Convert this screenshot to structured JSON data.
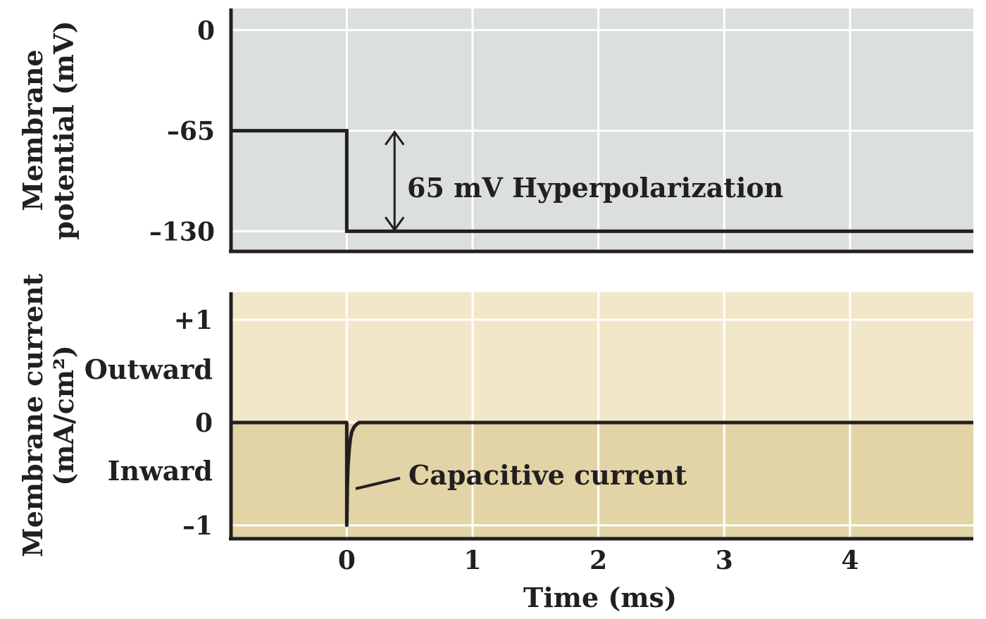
{
  "chart_data": [
    {
      "type": "line",
      "title": "",
      "ylabel_lines": [
        "Membrane",
        "potential (mV)"
      ],
      "xlim": [
        -0.92,
        4.98
      ],
      "ylim": [
        -143,
        14
      ],
      "yticks": [
        0,
        -65,
        -130
      ],
      "ytick_labels": [
        "0",
        "–65",
        "–130"
      ],
      "xgrid": [
        0,
        1,
        2,
        3,
        4
      ],
      "grid": true,
      "background": "#dbe0dc",
      "series": [
        {
          "name": "Membrane potential",
          "x": [
            -0.92,
            0,
            0,
            4.98
          ],
          "y": [
            -65,
            -65,
            -130,
            -130
          ]
        }
      ],
      "annotations": [
        {
          "text": "65 mV Hyperpolarization",
          "x": 0.38,
          "y_from": -65,
          "y_to": -130
        }
      ]
    },
    {
      "type": "line",
      "title": "",
      "ylabel_lines": [
        "Membrane current",
        "(mA/cm²)"
      ],
      "xlabel": "Time (ms)",
      "xlim": [
        -0.92,
        4.98
      ],
      "ylim": [
        -1.15,
        1.25
      ],
      "yticks": [
        1,
        0,
        -1
      ],
      "ytick_labels": [
        "+1",
        "0",
        "–1"
      ],
      "xticks": [
        0,
        1,
        2,
        3,
        4
      ],
      "xtick_labels": [
        "0",
        "1",
        "2",
        "3",
        "4"
      ],
      "region_labels": [
        "Outward",
        "Inward"
      ],
      "grid": true,
      "colors": {
        "outward": "#f2e8c9",
        "inward": "#e2d4a6"
      },
      "series": [
        {
          "name": "Membrane current",
          "x": [
            -0.92,
            0,
            0,
            0.005,
            0.01,
            0.02,
            0.03,
            0.04,
            0.06,
            0.08,
            0.1,
            4.98
          ],
          "y": [
            0,
            0,
            -1,
            -0.62,
            -0.42,
            -0.25,
            -0.15,
            -0.09,
            -0.04,
            -0.015,
            0,
            0
          ]
        }
      ],
      "annotations": [
        {
          "text": "Capacitive current",
          "x": 0.07,
          "y": -0.62
        }
      ]
    }
  ]
}
